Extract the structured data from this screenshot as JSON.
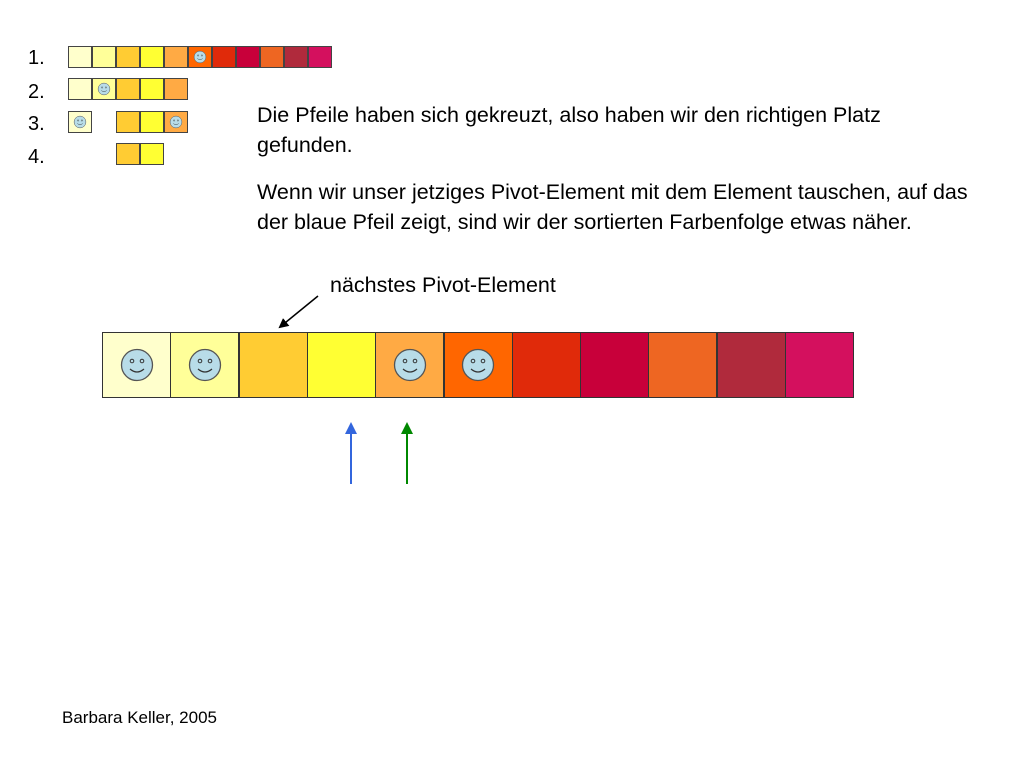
{
  "steps": [
    {
      "label": "1.",
      "cells": [
        {
          "color": "#FFFFCC",
          "smiley": false
        },
        {
          "color": "#FFFF99",
          "smiley": false
        },
        {
          "color": "#FFCC33",
          "smiley": false
        },
        {
          "color": "#FFFF33",
          "smiley": false
        },
        {
          "color": "#FFAA44",
          "smiley": false
        },
        {
          "color": "#FF6600",
          "smiley": true
        },
        {
          "color": "#E02A0A",
          "smiley": false
        },
        {
          "color": "#C8003A",
          "smiley": false
        },
        {
          "color": "#EE6622",
          "smiley": false
        },
        {
          "color": "#B02A3C",
          "smiley": false
        },
        {
          "color": "#D4105E",
          "smiley": false
        }
      ]
    },
    {
      "label": "2.",
      "cells": [
        {
          "color": "#FFFFCC",
          "smiley": false
        },
        {
          "color": "#FFFF99",
          "smiley": true
        },
        {
          "color": "#FFCC33",
          "smiley": false
        },
        {
          "color": "#FFFF33",
          "smiley": false
        },
        {
          "color": "#FFAA44",
          "smiley": false
        }
      ]
    },
    {
      "label": "3.",
      "cells": [
        {
          "color": "#FFFFCC",
          "smiley": true
        },
        {
          "color": null,
          "smiley": false
        },
        {
          "color": "#FFCC33",
          "smiley": false
        },
        {
          "color": "#FFFF33",
          "smiley": false
        },
        {
          "color": "#FFAA44",
          "smiley": true
        }
      ]
    },
    {
      "label": "4.",
      "cells": [
        {
          "color": null,
          "smiley": false
        },
        {
          "color": null,
          "smiley": false
        },
        {
          "color": "#FFCC33",
          "smiley": false
        },
        {
          "color": "#FFFF33",
          "smiley": false
        }
      ]
    }
  ],
  "text": {
    "paragraph1": "Die Pfeile haben sich gekreuzt, also haben wir den richtigen Platz gefunden.",
    "paragraph2": "Wenn wir unser jetziges Pivot-Element mit dem Element tauschen, auf das der blaue Pfeil zeigt, sind wir der sortierten Farbenfolge etwas näher.",
    "pivot_label": "nächstes Pivot-Element",
    "credit": "Barbara Keller, 2005"
  },
  "main_cells": [
    {
      "color": "#FFFFCC",
      "smiley": true
    },
    {
      "color": "#FFFF99",
      "smiley": true
    },
    {
      "color": "#FFCC33",
      "smiley": false
    },
    {
      "color": "#FFFF33",
      "smiley": false
    },
    {
      "color": "#FFAA44",
      "smiley": true
    },
    {
      "color": "#FF6600",
      "smiley": true
    },
    {
      "color": "#E02A0A",
      "smiley": false
    },
    {
      "color": "#C8003A",
      "smiley": false
    },
    {
      "color": "#EE6622",
      "smiley": false
    },
    {
      "color": "#B02A3C",
      "smiley": false
    },
    {
      "color": "#D4105E",
      "smiley": false
    }
  ],
  "colors": {
    "blue_arrow": "#3366DD",
    "green_arrow": "#008800",
    "smiley_face": "#B8DCE8",
    "pointer": "#000000"
  }
}
